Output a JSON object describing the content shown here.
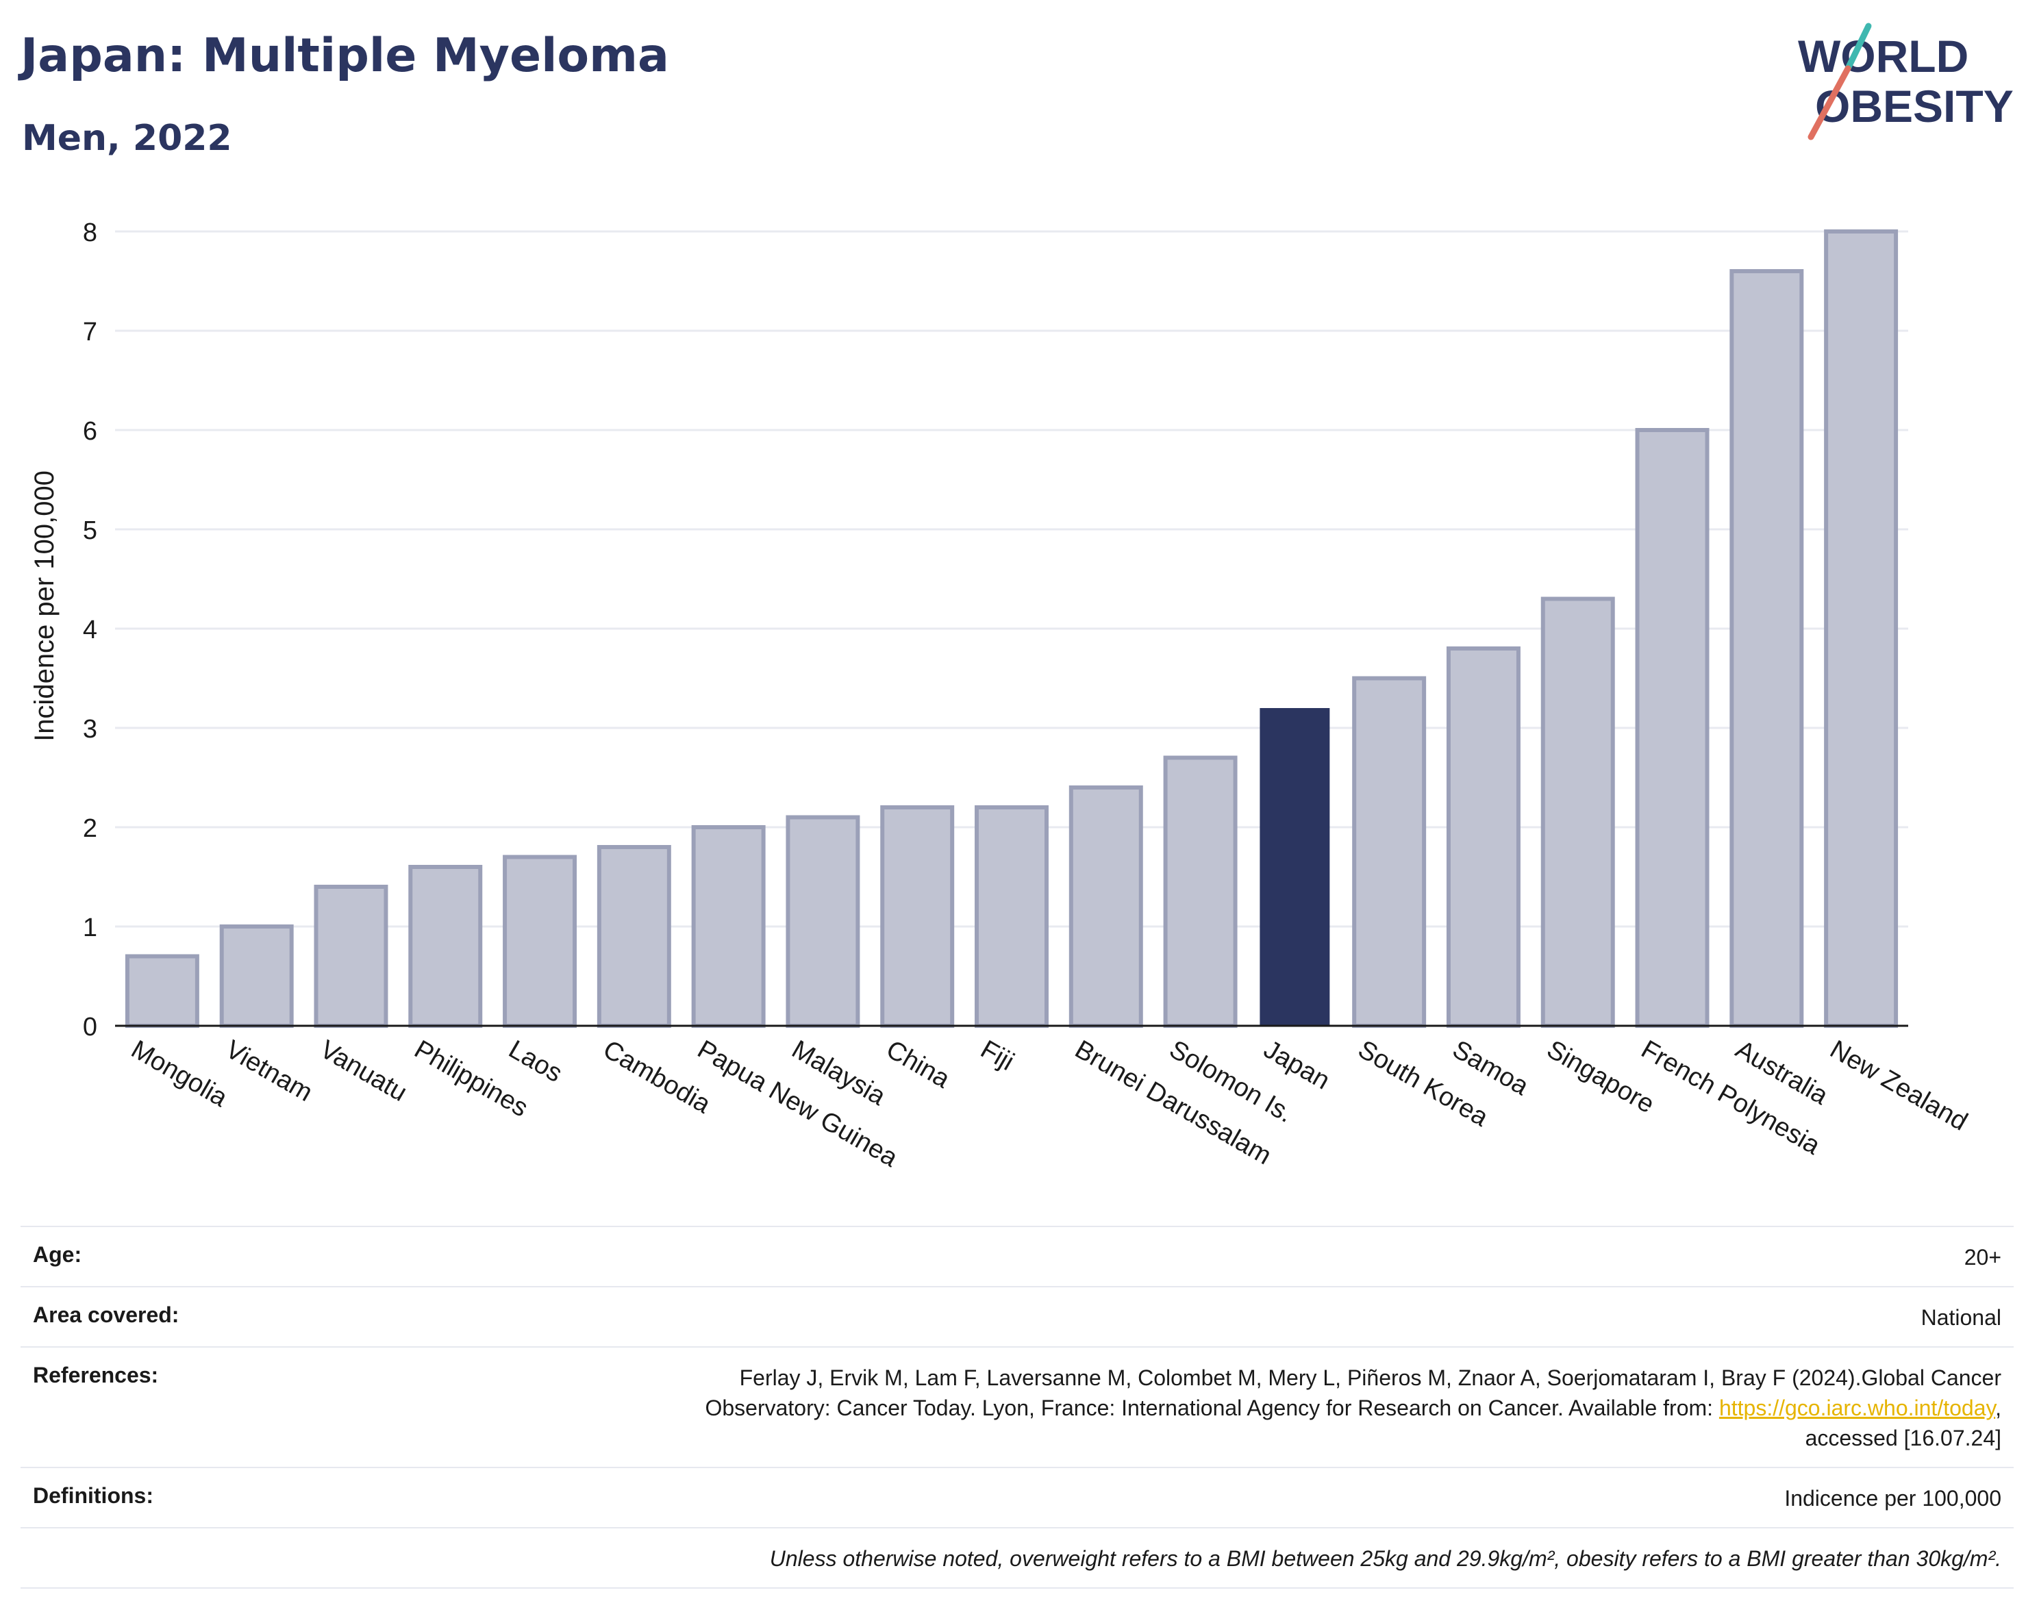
{
  "header": {
    "title": "Japan: Multiple Myeloma",
    "subtitle": "Men, 2022",
    "logo_line1": "WORLD",
    "logo_line2": "OBESITY"
  },
  "colors": {
    "highlight": "#2b3560",
    "bar": "#c0c3d2",
    "bar_border": "#9ba0b8",
    "grid": "#e8eaf0",
    "text": "#2b3560",
    "logo_teal": "#3fb8b0",
    "logo_red": "#e07060"
  },
  "chart_data": {
    "type": "bar",
    "ylabel": "Incidence per 100,000",
    "xlabel": "",
    "ylim": [
      0,
      8
    ],
    "yticks": [
      0,
      1,
      2,
      3,
      4,
      5,
      6,
      7,
      8
    ],
    "grid": true,
    "categories": [
      "Mongolia",
      "Vietnam",
      "Vanuatu",
      "Philippines",
      "Laos",
      "Cambodia",
      "Papua New Guinea",
      "Malaysia",
      "China",
      "Fiji",
      "Brunei Darussalam",
      "Solomon Is.",
      "Japan",
      "South Korea",
      "Samoa",
      "Singapore",
      "French Polynesia",
      "Australia",
      "New Zealand"
    ],
    "values": [
      0.7,
      1.0,
      1.4,
      1.6,
      1.7,
      1.8,
      2.0,
      2.1,
      2.2,
      2.2,
      2.4,
      2.7,
      3.2,
      3.5,
      3.8,
      4.3,
      6.0,
      7.6,
      8.0
    ],
    "highlight": "Japan"
  },
  "info": {
    "age_label": "Age:",
    "age_value": "20+",
    "area_label": "Area covered:",
    "area_value": "National",
    "ref_label": "References:",
    "ref_line1": "Ferlay J, Ervik M, Lam F, Laversanne M, Colombet M, Mery L, Piñeros M, Znaor A, Soerjomataram I, Bray F (2024).Global Cancer",
    "ref_line2_pre": "Observatory: Cancer Today. Lyon, France: International Agency for Research on Cancer. Available from: ",
    "ref_link": "https://gco.iarc.who.int/today",
    "ref_line2_post": ",",
    "ref_line3": "accessed [16.07.24]",
    "def_label": "Definitions:",
    "def_value": "Indicence per 100,000",
    "note": "Unless otherwise noted, overweight refers to a BMI between 25kg and 29.9kg/m², obesity refers to a BMI greater than 30kg/m²."
  }
}
